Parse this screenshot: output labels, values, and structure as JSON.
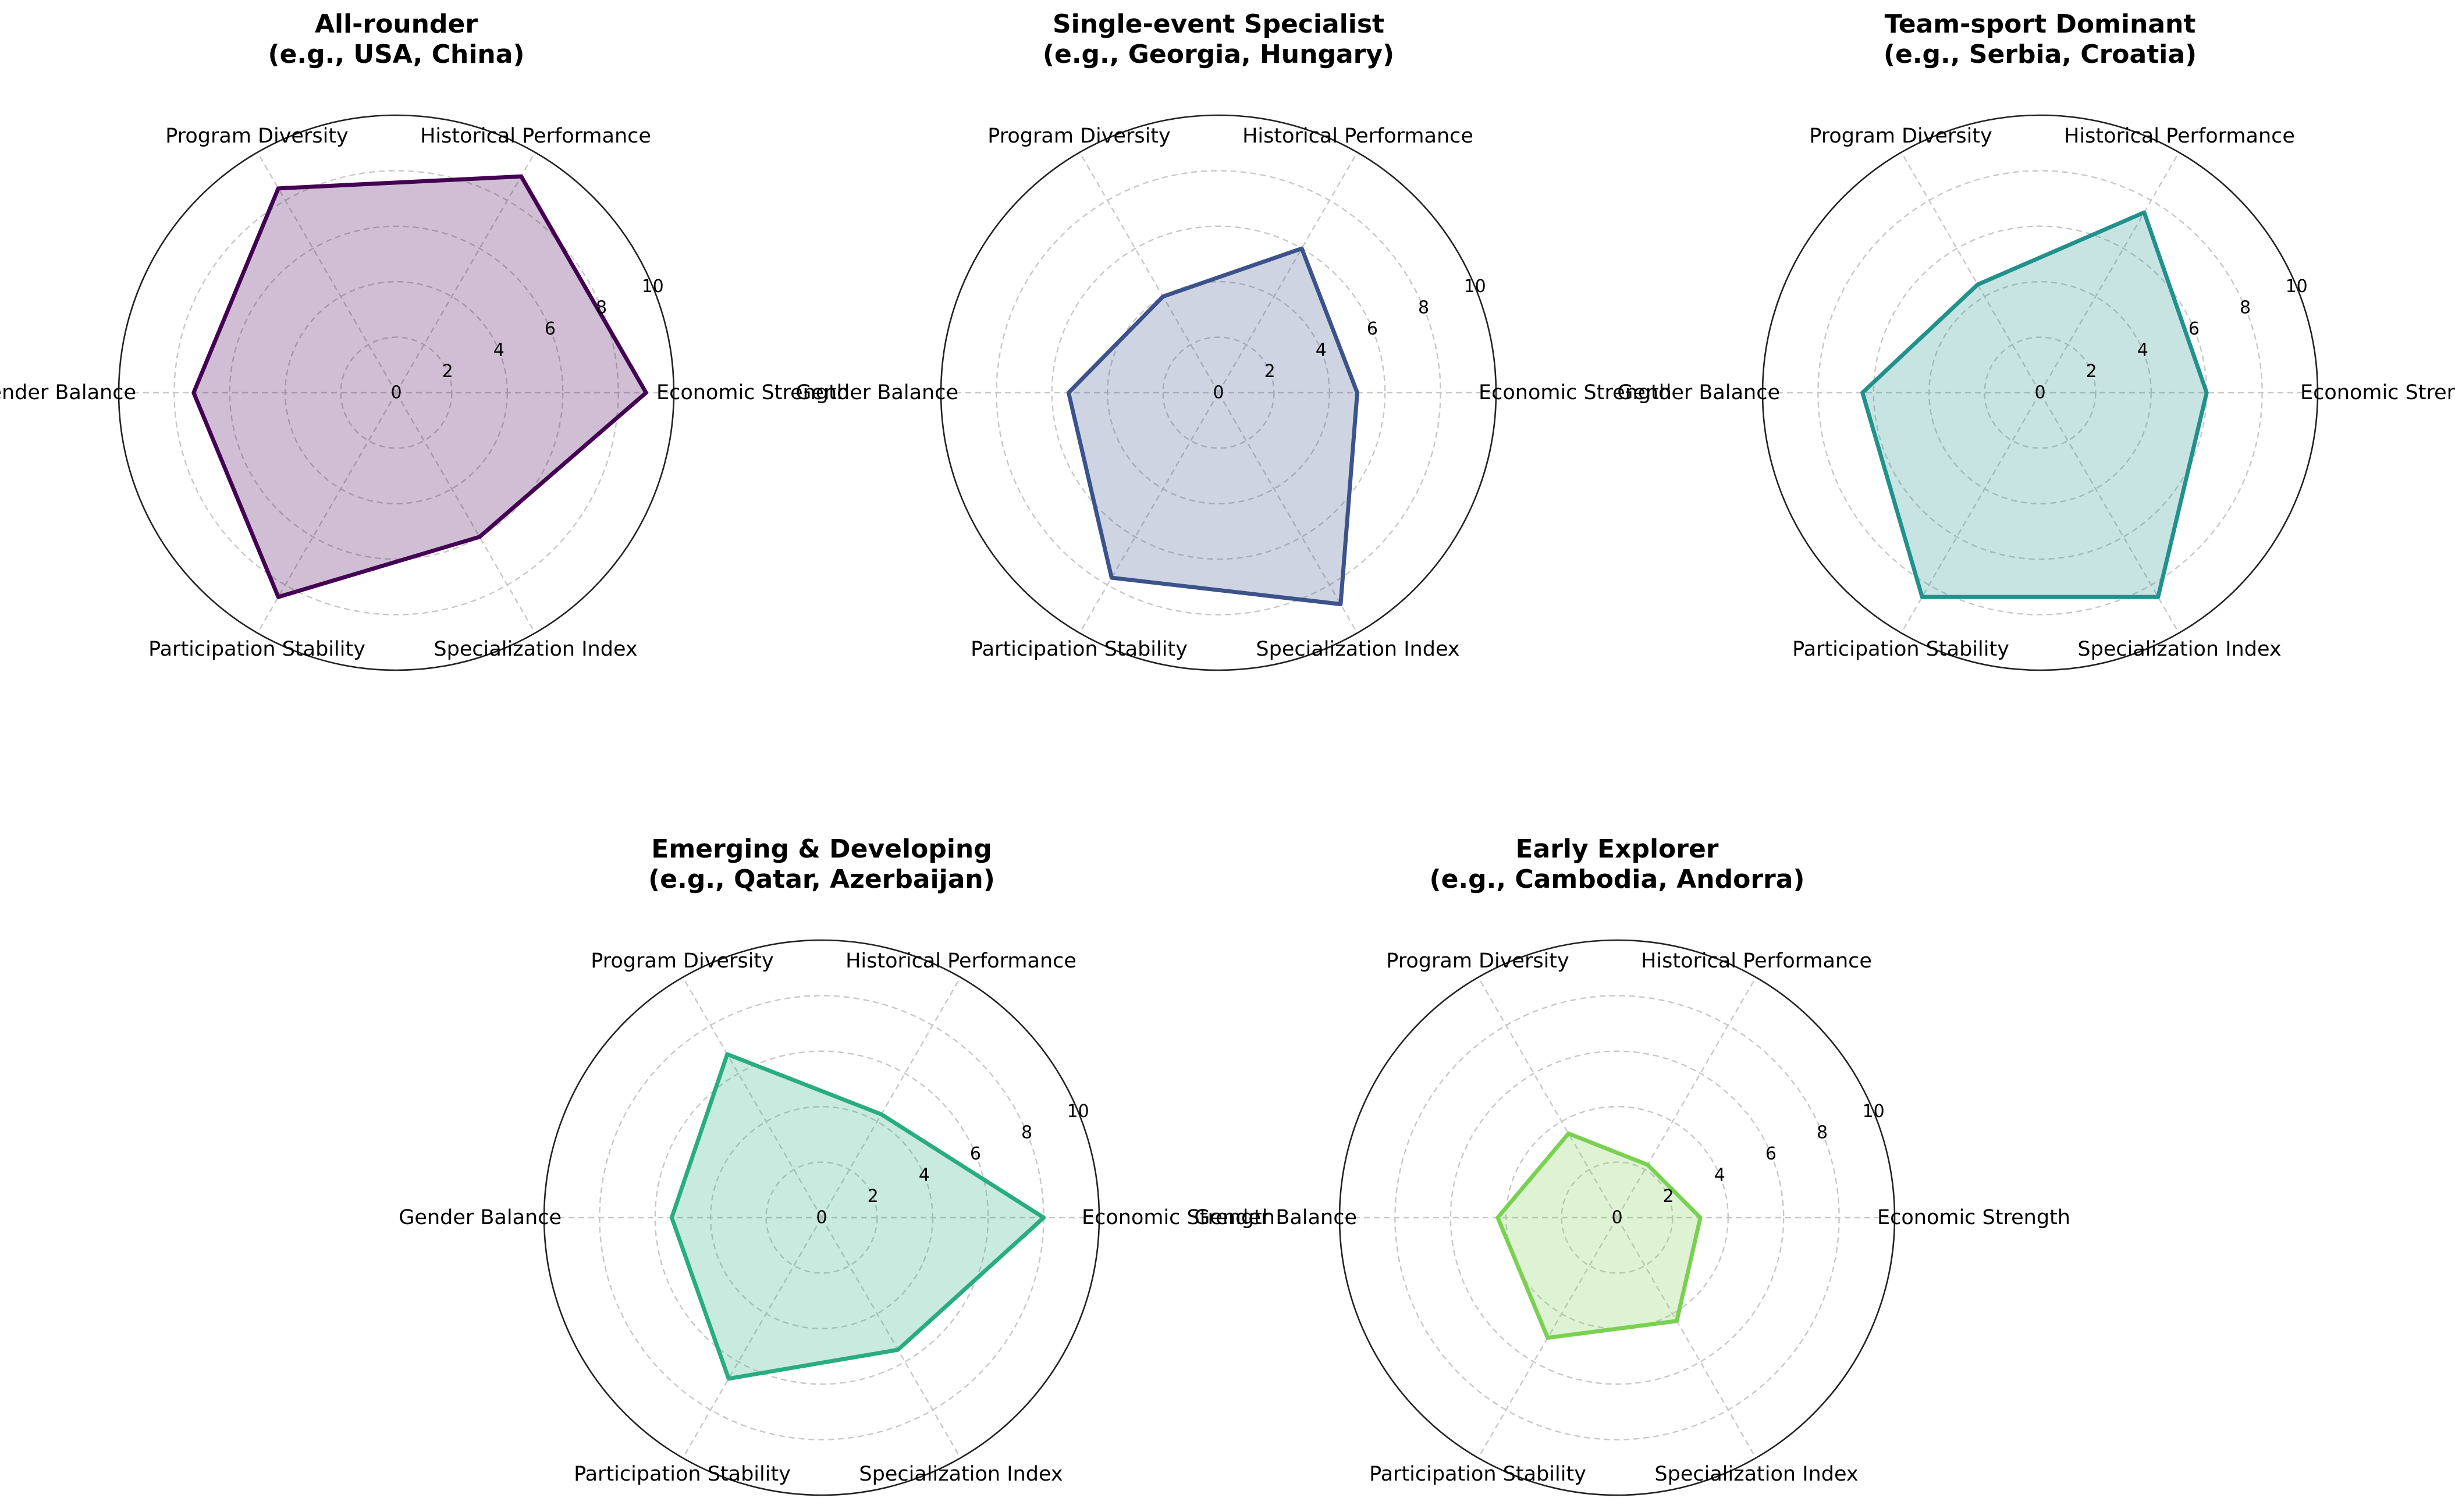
{
  "chart_data": [
    {
      "type": "radar",
      "title": "All-rounder\n(e.g., USA, China)",
      "axes": [
        "Economic Strength",
        "Historical Performance",
        "Program Diversity",
        "Gender Balance",
        "Participation Stability",
        "Specialization Index"
      ],
      "values": [
        9.0,
        9.0,
        8.5,
        7.3,
        8.5,
        6.0
      ],
      "rlim": [
        0,
        10
      ],
      "rticks": [
        "0",
        "2",
        "4",
        "6",
        "8",
        "10"
      ],
      "color": "#440154"
    },
    {
      "type": "radar",
      "title": "Single-event Specialist\n(e.g., Georgia, Hungary)",
      "axes": [
        "Economic Strength",
        "Historical Performance",
        "Program Diversity",
        "Gender Balance",
        "Participation Stability",
        "Specialization Index"
      ],
      "values": [
        5.0,
        6.0,
        4.0,
        5.4,
        7.7,
        8.8
      ],
      "rlim": [
        0,
        10
      ],
      "rticks": [
        "0",
        "2",
        "4",
        "6",
        "8",
        "10"
      ],
      "color": "#3b528b"
    },
    {
      "type": "radar",
      "title": "Team-sport Dominant\n(e.g., Serbia, Croatia)",
      "axes": [
        "Economic Strength",
        "Historical Performance",
        "Program Diversity",
        "Gender Balance",
        "Participation Stability",
        "Specialization Index"
      ],
      "values": [
        6.0,
        7.5,
        4.5,
        6.4,
        8.5,
        8.5
      ],
      "rlim": [
        0,
        10
      ],
      "rticks": [
        "0",
        "2",
        "4",
        "6",
        "8",
        "10"
      ],
      "color": "#21918c"
    },
    {
      "type": "radar",
      "title": "Emerging & Developing\n(e.g., Qatar, Azerbaijan)",
      "axes": [
        "Economic Strength",
        "Historical Performance",
        "Program Diversity",
        "Gender Balance",
        "Participation Stability",
        "Specialization Index"
      ],
      "values": [
        8.0,
        4.3,
        6.8,
        5.4,
        6.7,
        5.5
      ],
      "rlim": [
        0,
        10
      ],
      "rticks": [
        "0",
        "2",
        "4",
        "6",
        "8",
        "10"
      ],
      "color": "#27ad81"
    },
    {
      "type": "radar",
      "title": "Early Explorer\n(e.g., Cambodia, Andorra)",
      "axes": [
        "Economic Strength",
        "Historical Performance",
        "Program Diversity",
        "Gender Balance",
        "Participation Stability",
        "Specialization Index"
      ],
      "values": [
        3.0,
        2.2,
        3.5,
        4.3,
        5.0,
        4.3
      ],
      "rlim": [
        0,
        10
      ],
      "rticks": [
        "0",
        "2",
        "4",
        "6",
        "8",
        "10"
      ],
      "color": "#7ad151"
    }
  ]
}
